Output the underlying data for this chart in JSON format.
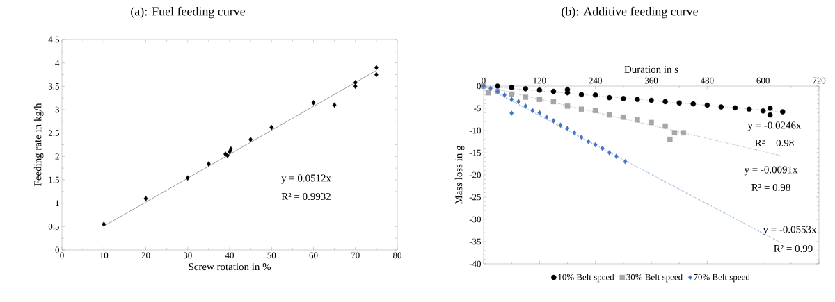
{
  "chart_data": [
    {
      "type": "scatter",
      "title": "(a): Fuel feeding curve",
      "xlabel": "Screw rotation in %",
      "ylabel": "Feeding rate in kg/h",
      "xlim": [
        0,
        80
      ],
      "xticks": [
        0,
        10,
        20,
        30,
        40,
        50,
        60,
        70,
        80
      ],
      "ylim": [
        0,
        4.5
      ],
      "yticks": [
        0,
        0.5,
        1,
        1.5,
        2,
        2.5,
        3,
        3.5,
        4,
        4.5
      ],
      "series": [
        {
          "color": "#000000",
          "marker": "diamond",
          "x": [
            10,
            20,
            30,
            35,
            39,
            39.5,
            40,
            40.3,
            45,
            50,
            60,
            65,
            70,
            70,
            75,
            75
          ],
          "values": [
            0.55,
            1.1,
            1.54,
            1.84,
            2.05,
            2.02,
            2.1,
            2.16,
            2.36,
            2.62,
            3.15,
            3.1,
            3.5,
            3.58,
            3.9,
            3.75
          ]
        },
        {
          "type": "line",
          "color": "#7f7f7f",
          "line_style": "solid",
          "marker": "none",
          "x": [
            10,
            75
          ],
          "values": [
            0.51,
            3.84
          ]
        }
      ],
      "annotations": [
        "y = 0.0512x",
        "R² = 0.9932"
      ]
    },
    {
      "type": "scatter",
      "title": "(b): Additive feeding curve",
      "xlabel": "Duration in s",
      "ylabel": "Mass loss in g",
      "xlim": [
        0,
        720
      ],
      "xticks": [
        0,
        120,
        240,
        360,
        480,
        600,
        720
      ],
      "ylim": [
        -40,
        0
      ],
      "yticks": [
        -40,
        -35,
        -30,
        -25,
        -20,
        -15,
        -10,
        -5,
        0
      ],
      "legend": "bottom",
      "series": [
        {
          "name": "10% Belt speed",
          "color": "#000000",
          "marker": "circle",
          "x": [
            0,
            30,
            60,
            90,
            120,
            150,
            180,
            180,
            210,
            240,
            270,
            300,
            330,
            360,
            390,
            420,
            450,
            480,
            510,
            540,
            570,
            600,
            615,
            615,
            642
          ],
          "values": [
            0,
            0,
            -0.3,
            -0.6,
            -0.9,
            -1.2,
            -0.8,
            -1.5,
            -1.9,
            -2.0,
            -2.6,
            -2.8,
            -3.0,
            -3.2,
            -3.5,
            -3.8,
            -4.0,
            -4.3,
            -4.7,
            -4.9,
            -5.2,
            -5.6,
            -6.5,
            -5.0,
            -5.8
          ]
        },
        {
          "name": "30% Belt speed",
          "color": "#a6a6a6",
          "marker": "square",
          "x": [
            0,
            10,
            30,
            60,
            90,
            120,
            150,
            180,
            210,
            240,
            270,
            300,
            330,
            360,
            390,
            400,
            410,
            429
          ],
          "values": [
            0,
            -1.5,
            -1.2,
            -1.8,
            -2.5,
            -3.0,
            -3.5,
            -4.5,
            -5.2,
            -5.5,
            -6.5,
            -7.0,
            -7.6,
            -8.2,
            -9.0,
            -12,
            -10.5,
            -10.5
          ]
        },
        {
          "name": "70% Belt speed",
          "color": "#4472c4",
          "marker": "diamond",
          "x": [
            0,
            15,
            30,
            45,
            60,
            60,
            75,
            90,
            105,
            120,
            135,
            150,
            165,
            180,
            195,
            210,
            225,
            240,
            255,
            270,
            285,
            304
          ],
          "values": [
            0,
            -0.5,
            -1.2,
            -2,
            -3,
            -6.1,
            -3.5,
            -4.5,
            -5.5,
            -6,
            -7,
            -7.8,
            -8.8,
            -9.5,
            -10.5,
            -11.5,
            -12.5,
            -13.2,
            -14,
            -15,
            -15.8,
            -17
          ]
        },
        {
          "type": "line",
          "color": "#9dc3e6",
          "line_style": "dotted",
          "marker": "none",
          "x": [
            0,
            642
          ],
          "values": [
            0,
            -5.8
          ]
        },
        {
          "type": "line",
          "color": "#a6a6a6",
          "line_style": "dotted",
          "marker": "none",
          "x": [
            0,
            636
          ],
          "values": [
            0,
            -15.6
          ]
        },
        {
          "type": "line",
          "color": "#4472c4",
          "line_style": "dotted",
          "marker": "none",
          "x": [
            0,
            639
          ],
          "values": [
            0,
            -35.3
          ]
        }
      ],
      "annotations": [
        "y = -0.0246x",
        "R² = 0.98",
        "y = -0.0091x",
        "R² = 0.98",
        "y = -0.0553x",
        "R² = 0.99"
      ]
    }
  ]
}
